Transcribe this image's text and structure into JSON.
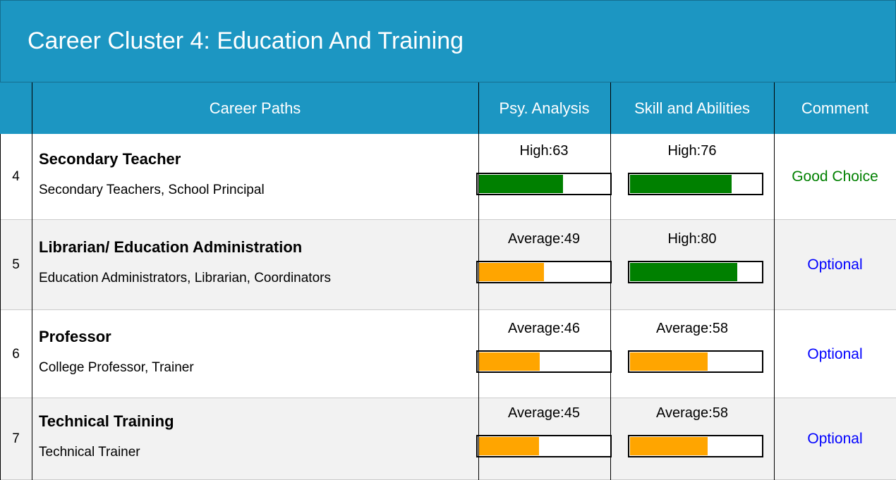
{
  "header": {
    "title": "Career Cluster 4: Education And Training"
  },
  "table": {
    "columns": [
      "Career Paths",
      "Psy. Analysis",
      "Skill and Abilities",
      "Comment"
    ],
    "rows": [
      {
        "number": "4",
        "title": "Secondary Teacher",
        "subtitle": "Secondary Teachers, School Principal",
        "psy_label": "High:63",
        "psy": 63,
        "psy_color": "#008000",
        "skill_label": "High:76",
        "skill": 76,
        "skill_color": "#008000",
        "comment": "Good Choice",
        "comment_color": "#008000"
      },
      {
        "number": "5",
        "title": "Librarian/ Education Administration",
        "subtitle": "Education Administrators, Librarian, Coordinators",
        "psy_label": "Average:49",
        "psy": 49,
        "psy_color": "#ffa500",
        "skill_label": "High:80",
        "skill": 80,
        "skill_color": "#008000",
        "comment": "Optional",
        "comment_color": "#0000ff"
      },
      {
        "number": "6",
        "title": "Professor",
        "subtitle": "College Professor, Trainer",
        "psy_label": "Average:46",
        "psy": 46,
        "psy_color": "#ffa500",
        "skill_label": "Average:58",
        "skill": 58,
        "skill_color": "#ffa500",
        "comment": "Optional",
        "comment_color": "#0000ff"
      },
      {
        "number": "7",
        "title": "Technical Training",
        "subtitle": "Technical Trainer",
        "psy_label": "Average:45",
        "psy": 45,
        "psy_color": "#ffa500",
        "skill_label": "Average:58",
        "skill": 58,
        "skill_color": "#ffa500",
        "comment": "Optional",
        "comment_color": "#0000ff"
      }
    ]
  }
}
